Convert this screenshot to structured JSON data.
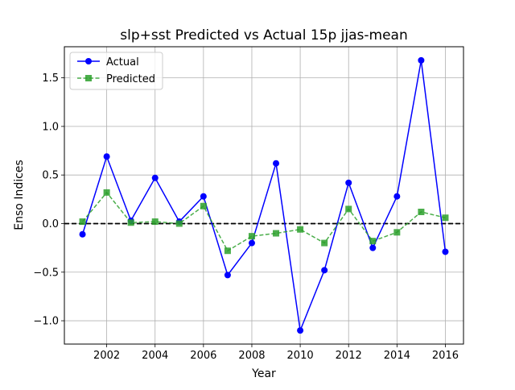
{
  "chart_data": {
    "type": "line",
    "title": "slp+sst Predicted vs Actual 15p jjas-mean",
    "xlabel": "Year",
    "ylabel": "Enso Indices",
    "xlim": [
      2000.25,
      2016.75
    ],
    "ylim": [
      -1.24,
      1.82
    ],
    "x_ticks": [
      2002,
      2004,
      2006,
      2008,
      2010,
      2012,
      2014,
      2016
    ],
    "x_tick_labels": [
      "2002",
      "2004",
      "2006",
      "2008",
      "2010",
      "2012",
      "2014",
      "2016"
    ],
    "y_ticks": [
      -1.0,
      -0.5,
      0.0,
      0.5,
      1.0,
      1.5
    ],
    "y_tick_labels": [
      "−1.0",
      "−0.5",
      "0.0",
      "0.5",
      "1.0",
      "1.5"
    ],
    "grid": true,
    "reference_line": {
      "y": 0,
      "style": "dashed",
      "color": "#000000"
    },
    "legend_position": "upper-left",
    "x": [
      2001,
      2002,
      2003,
      2004,
      2005,
      2006,
      2007,
      2008,
      2009,
      2010,
      2011,
      2012,
      2013,
      2014,
      2015,
      2016
    ],
    "series": [
      {
        "name": "Actual",
        "color": "#0000ff",
        "marker": "circle",
        "line_style": "solid",
        "values": [
          -0.11,
          0.69,
          0.03,
          0.47,
          0.02,
          0.28,
          -0.53,
          -0.2,
          0.62,
          -1.1,
          -0.48,
          0.42,
          -0.25,
          0.28,
          1.68,
          -0.29
        ]
      },
      {
        "name": "Predicted",
        "color": "#2ca02c",
        "marker": "square",
        "line_style": "dashed",
        "values": [
          0.02,
          0.32,
          0.01,
          0.02,
          0.0,
          0.18,
          -0.28,
          -0.13,
          -0.1,
          -0.06,
          -0.2,
          0.15,
          -0.18,
          -0.09,
          0.12,
          0.06
        ]
      }
    ]
  }
}
